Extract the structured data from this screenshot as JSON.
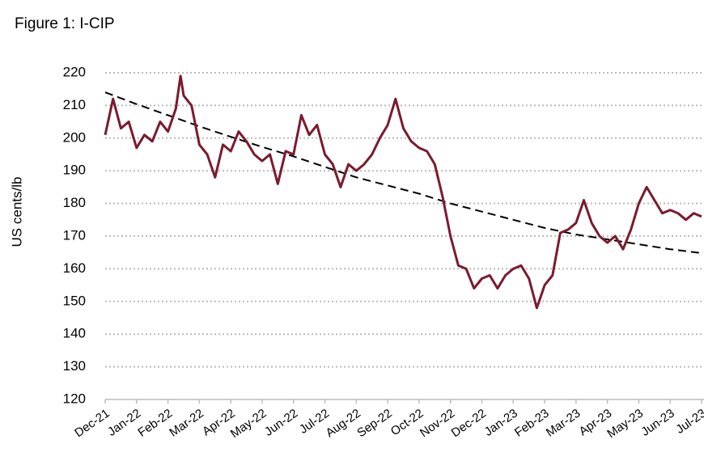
{
  "chart_data": {
    "type": "line",
    "title": "Figure 1: I-CIP",
    "y_label": "US cents/lb",
    "xlim": [
      0,
      19
    ],
    "xticks": [
      {
        "value": 0,
        "label": "Dec-21"
      },
      {
        "value": 1,
        "label": "Jan-22"
      },
      {
        "value": 2,
        "label": "Feb-22"
      },
      {
        "value": 3,
        "label": "Mar-22"
      },
      {
        "value": 4,
        "label": "Apr-22"
      },
      {
        "value": 5,
        "label": "May-22"
      },
      {
        "value": 6,
        "label": "Jun-22"
      },
      {
        "value": 7,
        "label": "Jul-22"
      },
      {
        "value": 8,
        "label": "Aug-22"
      },
      {
        "value": 9,
        "label": "Sep-22"
      },
      {
        "value": 10,
        "label": "Oct-22"
      },
      {
        "value": 11,
        "label": "Nov-22"
      },
      {
        "value": 12,
        "label": "Dec-22"
      },
      {
        "value": 13,
        "label": "Jan-23"
      },
      {
        "value": 14,
        "label": "Feb-23"
      },
      {
        "value": 15,
        "label": "Mar-23"
      },
      {
        "value": 16,
        "label": "Apr-23"
      },
      {
        "value": 17,
        "label": "May-23"
      },
      {
        "value": 18,
        "label": "Jun-23"
      },
      {
        "value": 19,
        "label": "Jul-23"
      }
    ],
    "ylim": [
      120,
      220
    ],
    "yticks": [
      120,
      130,
      140,
      150,
      160,
      170,
      180,
      190,
      200,
      210,
      220
    ],
    "grid": true,
    "series": [
      {
        "color": "#7b1a2e",
        "dash": false,
        "x": [
          0,
          0.25,
          0.5,
          0.75,
          1,
          1.25,
          1.5,
          1.75,
          2,
          2.25,
          2.4,
          2.5,
          2.75,
          3,
          3.25,
          3.5,
          3.75,
          4,
          4.25,
          4.5,
          4.75,
          5,
          5.25,
          5.5,
          5.75,
          6,
          6.25,
          6.5,
          6.75,
          7,
          7.25,
          7.5,
          7.75,
          8,
          8.25,
          8.5,
          8.75,
          9,
          9.25,
          9.5,
          9.75,
          10,
          10.25,
          10.5,
          10.75,
          11,
          11.25,
          11.5,
          11.75,
          12,
          12.25,
          12.5,
          12.75,
          13,
          13.25,
          13.5,
          13.75,
          14,
          14.25,
          14.5,
          14.75,
          15,
          15.25,
          15.5,
          15.75,
          16,
          16.25,
          16.5,
          16.75,
          17,
          17.25,
          17.5,
          17.75,
          18,
          18.25,
          18.5,
          18.75,
          19
        ],
        "values": [
          201,
          212,
          203,
          205,
          197,
          201,
          199,
          205,
          202,
          209,
          219,
          213,
          210,
          198,
          195,
          188,
          198,
          196,
          202,
          199,
          195,
          193,
          195,
          186,
          196,
          195,
          207,
          201,
          204,
          195,
          192,
          185,
          192,
          190,
          192,
          195,
          200,
          204,
          212,
          203,
          199,
          197,
          196,
          192,
          182,
          170,
          161,
          160,
          154,
          157,
          158,
          154,
          158,
          160,
          161,
          157,
          148,
          155,
          158,
          171,
          172,
          174,
          181,
          174,
          170,
          168,
          170,
          166,
          172,
          180,
          185,
          181,
          177,
          178,
          177,
          175,
          177,
          176
        ]
      },
      {
        "color": "#000000",
        "dash": true,
        "x": [
          0,
          1,
          2,
          3,
          4,
          5,
          6,
          7,
          8,
          9,
          10,
          11,
          12,
          13,
          14,
          15,
          16,
          17,
          18,
          19
        ],
        "values": [
          214,
          210.4,
          207,
          203.6,
          200.4,
          197.3,
          194.4,
          191.2,
          188,
          185.5,
          183,
          180,
          177.5,
          175,
          172.5,
          170.5,
          169,
          167.5,
          166,
          164.8
        ]
      }
    ]
  }
}
